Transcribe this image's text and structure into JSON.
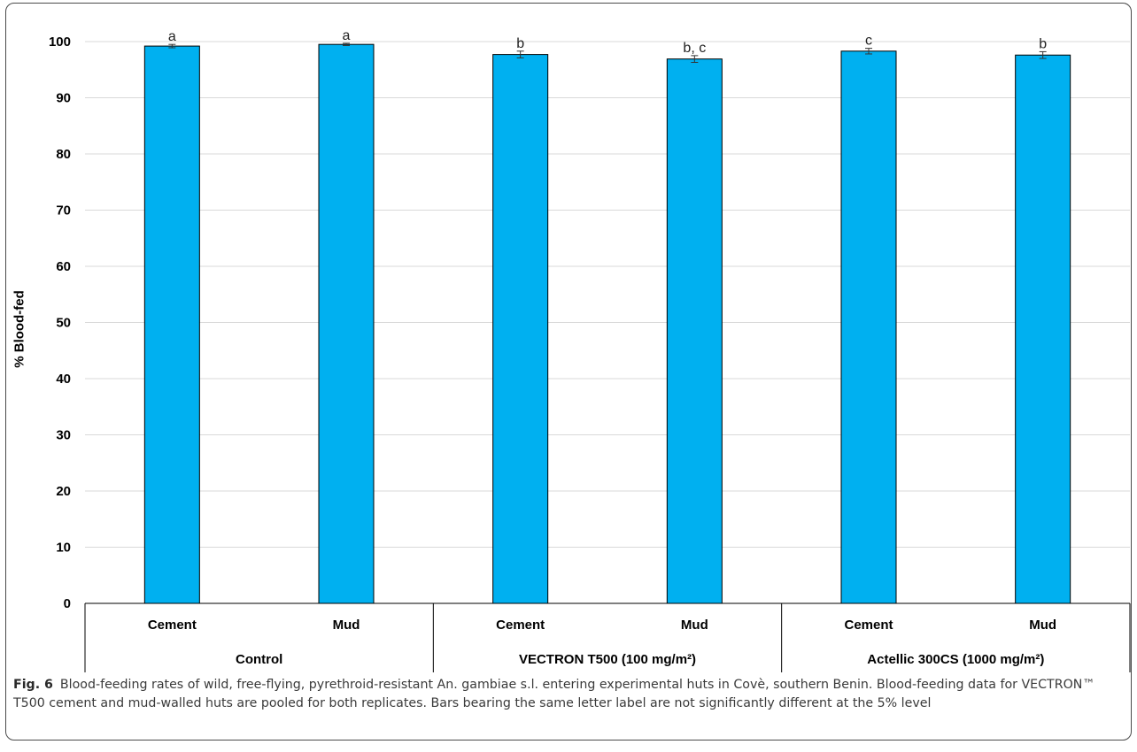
{
  "chart_data": {
    "type": "bar",
    "ylabel": "% Blood-fed",
    "ylim": [
      0,
      100
    ],
    "yticks": [
      0,
      10,
      20,
      30,
      40,
      50,
      60,
      70,
      80,
      90,
      100
    ],
    "grid": true,
    "bar_color": "#00b0f0",
    "groups": [
      {
        "label": "Control",
        "categories": [
          "Cement",
          "Mud"
        ]
      },
      {
        "label": "VECTRON T500 (100 mg/m²)",
        "categories": [
          "Cement",
          "Mud"
        ]
      },
      {
        "label": "Actellic 300CS (1000 mg/m²)",
        "categories": [
          "Cement",
          "Mud"
        ]
      }
    ],
    "categories": [
      "Cement",
      "Mud",
      "Cement",
      "Mud",
      "Cement",
      "Mud"
    ],
    "values": [
      99.2,
      99.5,
      97.7,
      96.9,
      98.3,
      97.6
    ],
    "errors": [
      0.3,
      0.2,
      0.6,
      0.6,
      0.5,
      0.6
    ],
    "annotations": [
      "a",
      "a",
      "b",
      "b, c",
      "c",
      "b"
    ]
  },
  "caption": {
    "fig_label": "Fig. 6",
    "text": "Blood-feeding rates of wild, free-flying, pyrethroid-resistant An. gambiae s.l. entering experimental huts in Covè, southern Benin. Blood-feeding data for VECTRON™ T500 cement and mud-walled huts are pooled for both replicates. Bars bearing the same letter label are not significantly different at the 5% level"
  }
}
